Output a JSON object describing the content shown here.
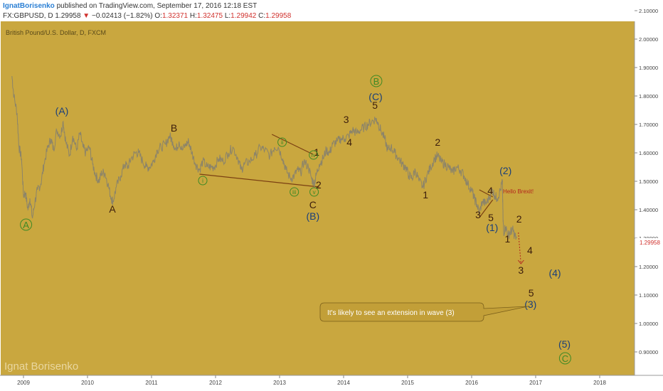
{
  "header": {
    "author": "IgnatBorisenko",
    "published": "published on TradingView.com, September 17, 2016 12:18 EST",
    "symbol": "FX:GBPUSD, D",
    "last": "1.29958",
    "change": "−0.02413 (−1.82%)",
    "o_label": "O:",
    "o_val": "1.32371",
    "h_label": "H:",
    "h_val": "1.32475",
    "l_label": "L:",
    "l_val": "1.29942",
    "c_label": "C:",
    "c_val": "1.29958"
  },
  "chart_title": "British Pound/U.S. Dollar, D, FXCM",
  "watermark": "Ignat Borisenko",
  "colors": {
    "background": "#c9a73f",
    "price_line": "#8c8469",
    "wave_dark": "#3b1d0c",
    "wave_blue": "#1a3f7a",
    "wave_green": "#3f8a25",
    "trend_line": "#7a3f12",
    "callout_fill": "#c29f38",
    "callout_text": "#ffffff",
    "axis_bg": "#ffffff",
    "price_label": "#d0312d",
    "brexit_text": "#b3261e"
  },
  "price_tag": "1.29958",
  "brexit_note": "Hello Brexit!",
  "callout_text": "It's likely to see an extension in wave (3)",
  "chart_data": {
    "type": "line",
    "title": "British Pound/U.S. Dollar, D, FXCM",
    "xlabel": "",
    "ylabel": "",
    "ylim": [
      0.84,
      2.11
    ],
    "x_ticks": [
      "2009",
      "2010",
      "2011",
      "2012",
      "2013",
      "2014",
      "2015",
      "2016",
      "2017",
      "2018"
    ],
    "y_ticks": [
      "0.90000",
      "1.00000",
      "1.10000",
      "1.20000",
      "1.30000",
      "1.40000",
      "1.50000",
      "1.60000",
      "1.70000",
      "1.80000",
      "1.90000",
      "2.00000",
      "2.10000"
    ],
    "series": [
      {
        "values": [
          [
            2008.82,
            1.87
          ],
          [
            2008.85,
            1.8
          ],
          [
            2008.9,
            1.74
          ],
          [
            2008.93,
            1.62
          ],
          [
            2008.97,
            1.58
          ],
          [
            2009.0,
            1.45
          ],
          [
            2009.03,
            1.46
          ],
          [
            2009.07,
            1.4
          ],
          [
            2009.1,
            1.44
          ],
          [
            2009.14,
            1.37
          ],
          [
            2009.18,
            1.43
          ],
          [
            2009.22,
            1.47
          ],
          [
            2009.27,
            1.49
          ],
          [
            2009.32,
            1.56
          ],
          [
            2009.38,
            1.62
          ],
          [
            2009.43,
            1.65
          ],
          [
            2009.47,
            1.61
          ],
          [
            2009.52,
            1.68
          ],
          [
            2009.58,
            1.66
          ],
          [
            2009.62,
            1.71
          ],
          [
            2009.66,
            1.64
          ],
          [
            2009.72,
            1.59
          ],
          [
            2009.77,
            1.66
          ],
          [
            2009.83,
            1.61
          ],
          [
            2009.88,
            1.67
          ],
          [
            2009.93,
            1.62
          ],
          [
            2009.97,
            1.6
          ],
          [
            2010.03,
            1.62
          ],
          [
            2010.08,
            1.56
          ],
          [
            2010.13,
            1.52
          ],
          [
            2010.18,
            1.5
          ],
          [
            2010.22,
            1.53
          ],
          [
            2010.27,
            1.53
          ],
          [
            2010.32,
            1.49
          ],
          [
            2010.37,
            1.44
          ],
          [
            2010.4,
            1.43
          ],
          [
            2010.45,
            1.48
          ],
          [
            2010.52,
            1.52
          ],
          [
            2010.58,
            1.56
          ],
          [
            2010.63,
            1.55
          ],
          [
            2010.68,
            1.58
          ],
          [
            2010.75,
            1.6
          ],
          [
            2010.8,
            1.6
          ],
          [
            2010.86,
            1.57
          ],
          [
            2010.92,
            1.55
          ],
          [
            2010.97,
            1.55
          ],
          [
            2011.03,
            1.57
          ],
          [
            2011.09,
            1.61
          ],
          [
            2011.15,
            1.62
          ],
          [
            2011.22,
            1.63
          ],
          [
            2011.28,
            1.66
          ],
          [
            2011.33,
            1.64
          ],
          [
            2011.38,
            1.61
          ],
          [
            2011.43,
            1.64
          ],
          [
            2011.48,
            1.61
          ],
          [
            2011.54,
            1.63
          ],
          [
            2011.58,
            1.64
          ],
          [
            2011.63,
            1.6
          ],
          [
            2011.69,
            1.56
          ],
          [
            2011.75,
            1.54
          ],
          [
            2011.8,
            1.57
          ],
          [
            2011.87,
            1.55
          ],
          [
            2011.93,
            1.55
          ],
          [
            2011.98,
            1.55
          ],
          [
            2012.05,
            1.58
          ],
          [
            2012.12,
            1.57
          ],
          [
            2012.2,
            1.6
          ],
          [
            2012.27,
            1.62
          ],
          [
            2012.35,
            1.58
          ],
          [
            2012.4,
            1.54
          ],
          [
            2012.45,
            1.56
          ],
          [
            2012.53,
            1.57
          ],
          [
            2012.62,
            1.59
          ],
          [
            2012.7,
            1.62
          ],
          [
            2012.77,
            1.61
          ],
          [
            2012.85,
            1.59
          ],
          [
            2012.92,
            1.62
          ],
          [
            2012.98,
            1.62
          ],
          [
            2013.05,
            1.58
          ],
          [
            2013.1,
            1.54
          ],
          [
            2013.17,
            1.51
          ],
          [
            2013.23,
            1.52
          ],
          [
            2013.28,
            1.54
          ],
          [
            2013.33,
            1.53
          ],
          [
            2013.38,
            1.57
          ],
          [
            2013.45,
            1.55
          ],
          [
            2013.5,
            1.51
          ],
          [
            2013.54,
            1.49
          ],
          [
            2013.57,
            1.52
          ],
          [
            2013.62,
            1.56
          ],
          [
            2013.68,
            1.58
          ],
          [
            2013.73,
            1.61
          ],
          [
            2013.78,
            1.6
          ],
          [
            2013.83,
            1.63
          ],
          [
            2013.9,
            1.64
          ],
          [
            2013.96,
            1.65
          ],
          [
            2014.02,
            1.65
          ],
          [
            2014.08,
            1.66
          ],
          [
            2014.14,
            1.68
          ],
          [
            2014.2,
            1.67
          ],
          [
            2014.26,
            1.68
          ],
          [
            2014.32,
            1.69
          ],
          [
            2014.38,
            1.7
          ],
          [
            2014.44,
            1.71
          ],
          [
            2014.5,
            1.72
          ],
          [
            2014.53,
            1.71
          ],
          [
            2014.58,
            1.68
          ],
          [
            2014.64,
            1.65
          ],
          [
            2014.69,
            1.61
          ],
          [
            2014.74,
            1.62
          ],
          [
            2014.8,
            1.6
          ],
          [
            2014.86,
            1.58
          ],
          [
            2014.92,
            1.56
          ],
          [
            2014.97,
            1.55
          ],
          [
            2015.02,
            1.52
          ],
          [
            2015.07,
            1.51
          ],
          [
            2015.12,
            1.54
          ],
          [
            2015.18,
            1.5
          ],
          [
            2015.24,
            1.48
          ],
          [
            2015.3,
            1.52
          ],
          [
            2015.36,
            1.55
          ],
          [
            2015.42,
            1.58
          ],
          [
            2015.47,
            1.59
          ],
          [
            2015.52,
            1.57
          ],
          [
            2015.58,
            1.56
          ],
          [
            2015.64,
            1.55
          ],
          [
            2015.7,
            1.53
          ],
          [
            2015.76,
            1.55
          ],
          [
            2015.82,
            1.54
          ],
          [
            2015.88,
            1.52
          ],
          [
            2015.94,
            1.49
          ],
          [
            2016.0,
            1.47
          ],
          [
            2016.04,
            1.44
          ],
          [
            2016.08,
            1.42
          ],
          [
            2016.12,
            1.39
          ],
          [
            2016.17,
            1.43
          ],
          [
            2016.22,
            1.42
          ],
          [
            2016.27,
            1.44
          ],
          [
            2016.32,
            1.47
          ],
          [
            2016.36,
            1.45
          ],
          [
            2016.4,
            1.44
          ],
          [
            2016.45,
            1.47
          ],
          [
            2016.48,
            1.5
          ],
          [
            2016.49,
            1.37
          ],
          [
            2016.5,
            1.32
          ],
          [
            2016.53,
            1.34
          ],
          [
            2016.57,
            1.31
          ],
          [
            2016.6,
            1.32
          ],
          [
            2016.64,
            1.33
          ],
          [
            2016.67,
            1.31
          ],
          [
            2016.7,
            1.3
          ]
        ]
      }
    ],
    "labels": {
      "wave_dark": [
        {
          "text": "A",
          "x": 2010.39,
          "y": 1.39
        },
        {
          "text": "B",
          "x": 2011.35,
          "y": 1.675
        },
        {
          "text": "1",
          "x": 2013.58,
          "y": 1.59
        },
        {
          "text": "2",
          "x": 2013.61,
          "y": 1.475
        },
        {
          "text": "C",
          "x": 2013.52,
          "y": 1.405
        },
        {
          "text": "3",
          "x": 2014.04,
          "y": 1.705
        },
        {
          "text": "4",
          "x": 2014.09,
          "y": 1.625
        },
        {
          "text": "5",
          "x": 2014.49,
          "y": 1.755
        },
        {
          "text": "2",
          "x": 2015.47,
          "y": 1.625
        },
        {
          "text": "1",
          "x": 2015.28,
          "y": 1.44
        },
        {
          "text": "4",
          "x": 2016.29,
          "y": 1.455
        },
        {
          "text": "3",
          "x": 2016.1,
          "y": 1.37
        },
        {
          "text": "5",
          "x": 2016.3,
          "y": 1.36
        },
        {
          "text": "1",
          "x": 2016.56,
          "y": 1.285
        },
        {
          "text": "2",
          "x": 2016.74,
          "y": 1.355
        },
        {
          "text": "4",
          "x": 2016.91,
          "y": 1.245
        },
        {
          "text": "3",
          "x": 2016.77,
          "y": 1.175
        },
        {
          "text": "5",
          "x": 2016.93,
          "y": 1.095
        }
      ],
      "wave_blue": [
        {
          "text": "(A)",
          "x": 2009.6,
          "y": 1.735
        },
        {
          "text": "(B)",
          "x": 2013.52,
          "y": 1.365
        },
        {
          "text": "(C)",
          "x": 2014.5,
          "y": 1.785
        },
        {
          "text": "(2)",
          "x": 2016.53,
          "y": 1.525
        },
        {
          "text": "(1)",
          "x": 2016.32,
          "y": 1.325
        },
        {
          "text": "(3)",
          "x": 2016.92,
          "y": 1.055
        },
        {
          "text": "(4)",
          "x": 2017.3,
          "y": 1.165
        },
        {
          "text": "(5)",
          "x": 2017.45,
          "y": 0.915
        }
      ],
      "wave_green": [
        {
          "text": "i",
          "x": 2011.8,
          "y": 1.495
        },
        {
          "text": "ii",
          "x": 2013.04,
          "y": 1.63
        },
        {
          "text": "iii",
          "x": 2013.23,
          "y": 1.455
        },
        {
          "text": "iv",
          "x": 2013.53,
          "y": 1.585
        },
        {
          "text": "v",
          "x": 2013.54,
          "y": 1.455
        }
      ],
      "wave_green_big": [
        {
          "text": "A",
          "x": 2009.04,
          "y": 1.335
        },
        {
          "text": "B",
          "x": 2014.51,
          "y": 1.84
        },
        {
          "text": "C",
          "x": 2017.46,
          "y": 0.865
        }
      ]
    }
  }
}
